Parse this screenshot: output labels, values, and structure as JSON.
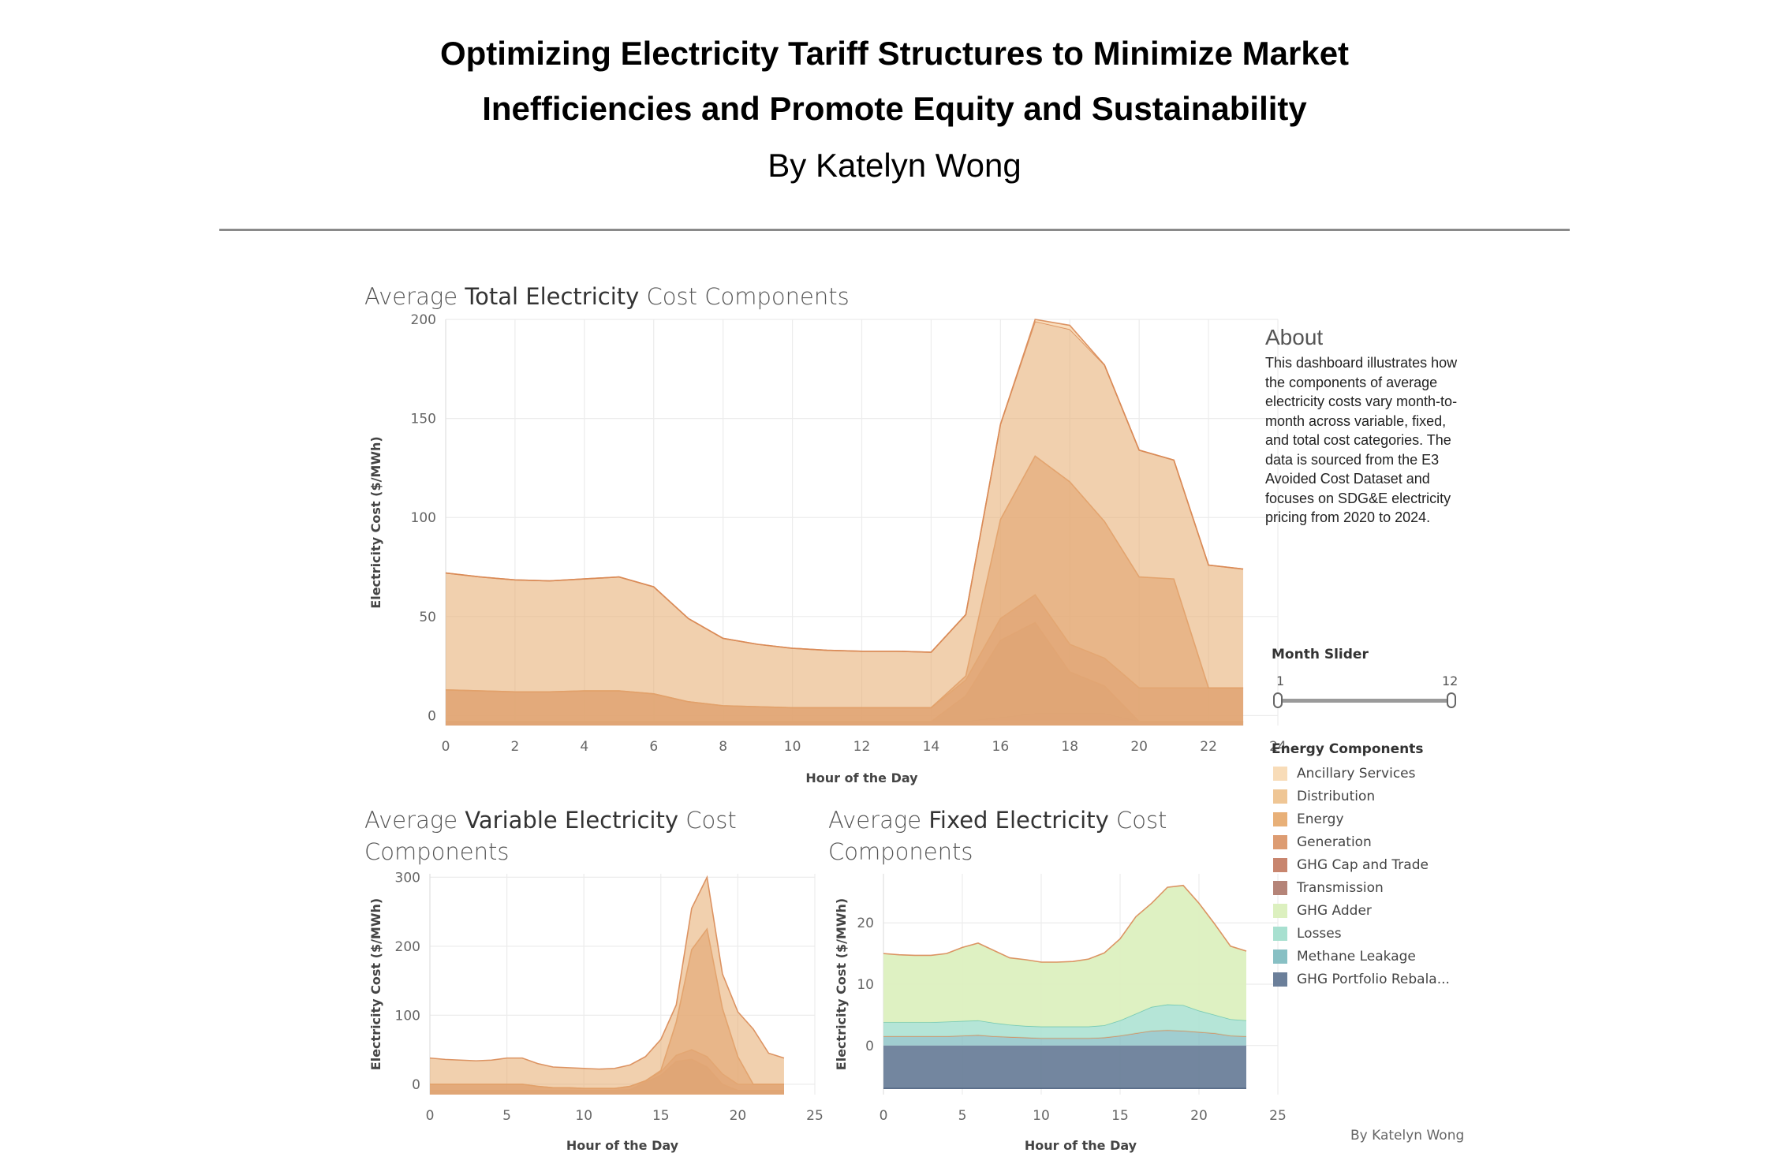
{
  "header": {
    "title_line1": "Optimizing Electricity Tariff Structures to Minimize Market",
    "title_line2": "Inefficiencies and Promote Equity and Sustainability",
    "byline": "By Katelyn Wong"
  },
  "chart_titles": {
    "total": {
      "pre": "Average ",
      "bold": "Total Electricity",
      "post": " Cost Components"
    },
    "variable": {
      "line1_pre": "Average ",
      "line1_bold": "Variable Electricity",
      "line1_post": " Cost",
      "line2": "Components"
    },
    "fixed": {
      "line1_pre": "Average ",
      "line1_bold": "Fixed Electricity",
      "line1_post": " Cost",
      "line2": "Components"
    }
  },
  "about": {
    "title": "About",
    "text": "This dashboard illustrates how the components of average electricity costs vary month-to-month across variable, fixed, and total cost categories. The data is sourced from the E3 Avoided Cost Dataset and focuses on SDG&E electricity pricing from 2020 to 2024."
  },
  "slider": {
    "label": "Month Slider",
    "min": "1",
    "max": "12",
    "selected_range": [
      1,
      12
    ]
  },
  "legend": {
    "title": "Energy Components",
    "items": [
      {
        "name": "Ancillary Services",
        "color": "#f8dcb8"
      },
      {
        "name": "Distribution",
        "color": "#efc695"
      },
      {
        "name": "Energy",
        "color": "#e8b078"
      },
      {
        "name": "Generation",
        "color": "#dd9c72"
      },
      {
        "name": "GHG Cap and Trade",
        "color": "#c8856e"
      },
      {
        "name": "Transmission",
        "color": "#b58478"
      },
      {
        "name": "GHG Adder",
        "color": "#dcf0bf"
      },
      {
        "name": "Losses",
        "color": "#a8e0d0"
      },
      {
        "name": "Methane Leakage",
        "color": "#88c0c4"
      },
      {
        "name": "GHG Portfolio Rebala...",
        "color": "#6b7f9a"
      }
    ]
  },
  "footer": "By Katelyn Wong",
  "chart_data": [
    {
      "type": "area",
      "title": "Average Total Electricity Cost Components",
      "xlabel": "Hour of the Day",
      "ylabel": "Electricity Cost ($/MWh)",
      "xlim": [
        0,
        24
      ],
      "ylim": [
        -5,
        200
      ],
      "xticks": [
        0,
        2,
        4,
        6,
        8,
        10,
        12,
        14,
        16,
        18,
        20,
        22,
        24
      ],
      "yticks": [
        0,
        50,
        100,
        150,
        200
      ],
      "grid": true,
      "x": [
        0,
        1,
        2,
        3,
        4,
        5,
        6,
        7,
        8,
        9,
        10,
        11,
        12,
        13,
        14,
        15,
        16,
        17,
        18,
        19,
        20,
        21,
        22,
        23
      ],
      "layers": [
        {
          "name": "Losses",
          "color": "#a8e0d0",
          "opacity": 0.9,
          "values": [
            -3,
            -3,
            -3,
            -3,
            -3,
            -3,
            -3,
            -3,
            -3,
            -3,
            -3,
            -3,
            -3,
            -3,
            -3,
            -3,
            -1,
            1,
            1,
            1,
            -3,
            -3,
            -3,
            -3
          ],
          "base": -5
        },
        {
          "name": "Transmission",
          "color": "#b58478",
          "opacity": 0.85,
          "values": [
            -3,
            -3,
            -3,
            -3,
            -3,
            -3,
            -3,
            -3,
            -3,
            -3,
            -3,
            -3,
            -3,
            -3,
            -3,
            10,
            38,
            47,
            22,
            15,
            -3,
            -3,
            -3,
            -3
          ],
          "base": -5
        },
        {
          "name": "GHG Cap and Trade",
          "color": "#c8856e",
          "opacity": 0.7,
          "values": [
            13,
            12.5,
            12,
            12,
            12.5,
            12.5,
            11,
            7,
            5,
            4.5,
            4,
            4,
            4,
            4,
            4,
            18,
            49,
            61,
            36,
            29,
            14,
            14,
            14,
            14
          ],
          "base": -5
        },
        {
          "name": "Generation",
          "color": "#dd9c72",
          "opacity": 0.65,
          "values": [
            13,
            12.5,
            12,
            12,
            12.5,
            12.5,
            11,
            7,
            5,
            4.5,
            4,
            4,
            4,
            4,
            4,
            20,
            99,
            131,
            118,
            98,
            70,
            69,
            14,
            14
          ],
          "base": -5
        },
        {
          "name": "Energy",
          "color": "#e8b078",
          "opacity": 0.6,
          "values": [
            72,
            70,
            68.5,
            68,
            69,
            70,
            65,
            49,
            39,
            36,
            34,
            33,
            32.5,
            32.5,
            32,
            51,
            147,
            199,
            195,
            177,
            134,
            129,
            76,
            74
          ],
          "base": -5
        },
        {
          "name": "Ancillary Services",
          "color": "#f8dcb8",
          "opacity": 0.9,
          "values": [
            72,
            70,
            68.5,
            68,
            69,
            70,
            65,
            49,
            39,
            36,
            34,
            33,
            32.5,
            32.5,
            32,
            51,
            147,
            200,
            197,
            177,
            134,
            129,
            76,
            74
          ],
          "base": "Energy"
        }
      ]
    },
    {
      "type": "area",
      "title": "Average Variable Electricity Cost Components",
      "xlabel": "Hour of the Day",
      "ylabel": "Electricity Cost ($/MWh)",
      "xlim": [
        0,
        25
      ],
      "ylim": [
        -15,
        305
      ],
      "xticks": [
        0,
        5,
        10,
        15,
        20,
        25
      ],
      "yticks": [
        0,
        100,
        200,
        300
      ],
      "grid": true,
      "x": [
        0,
        1,
        2,
        3,
        4,
        5,
        6,
        7,
        8,
        9,
        10,
        11,
        12,
        13,
        14,
        15,
        16,
        17,
        18,
        19,
        20,
        21,
        22,
        23
      ],
      "layers": [
        {
          "name": "Transmission",
          "color": "#b58478",
          "opacity": 0.85,
          "values": [
            -9,
            -9,
            -9,
            -9,
            -9,
            -9,
            -9,
            -9,
            -9,
            -9,
            -9,
            -9,
            -9,
            -8,
            3,
            13,
            33,
            36,
            25,
            0,
            -9,
            -9,
            -9,
            -9
          ],
          "base": -15
        },
        {
          "name": "GHG Cap and Trade",
          "color": "#c8856e",
          "opacity": 0.7,
          "values": [
            0,
            0,
            0,
            0,
            0,
            0,
            0,
            -3,
            -5,
            -5,
            -6,
            -6,
            -6,
            -3,
            5,
            18,
            42,
            50,
            40,
            15,
            0,
            0,
            0,
            0
          ],
          "base": -15
        },
        {
          "name": "Generation",
          "color": "#dd9c72",
          "opacity": 0.65,
          "values": [
            0,
            0,
            0,
            0,
            0,
            0,
            0,
            -3,
            -5,
            -5,
            -6,
            -6,
            -6,
            -3,
            5,
            20,
            90,
            195,
            225,
            110,
            40,
            0,
            0,
            0
          ],
          "base": -15
        },
        {
          "name": "Energy",
          "color": "#e8b078",
          "opacity": 0.6,
          "values": [
            38,
            36,
            35,
            34,
            35,
            38,
            38,
            30,
            25,
            24,
            23,
            22,
            23,
            28,
            40,
            65,
            115,
            255,
            300,
            160,
            105,
            80,
            45,
            38
          ],
          "base": -15
        }
      ]
    },
    {
      "type": "area",
      "title": "Average Fixed Electricity Cost Components",
      "xlabel": "Hour of the Day",
      "ylabel": "Electricity Cost ($/MWh)",
      "xlim": [
        0,
        25
      ],
      "ylim": [
        -8,
        28
      ],
      "xticks": [
        0,
        5,
        10,
        15,
        20,
        25
      ],
      "yticks": [
        0,
        10,
        20
      ],
      "grid": true,
      "x": [
        0,
        1,
        2,
        3,
        4,
        5,
        6,
        7,
        8,
        9,
        10,
        11,
        12,
        13,
        14,
        15,
        16,
        17,
        18,
        19,
        20,
        21,
        22,
        23
      ],
      "layers": [
        {
          "name": "GHG Portfolio Rebala...",
          "color": "#6b7f9a",
          "opacity": 0.95,
          "values": [
            -7,
            -7,
            -7,
            -7,
            -7,
            -7,
            -7,
            -7,
            -7,
            -7,
            -7,
            -7,
            -7,
            -7,
            -7,
            -7,
            -7,
            -7,
            -7,
            -7,
            -7,
            -7,
            -7,
            -7
          ],
          "base": 0
        },
        {
          "name": "Methane Leakage",
          "color": "#88c0c4",
          "opacity": 0.8,
          "values": [
            1.5,
            1.5,
            1.5,
            1.5,
            1.5,
            1.6,
            1.7,
            1.5,
            1.4,
            1.3,
            1.2,
            1.2,
            1.2,
            1.2,
            1.3,
            1.6,
            2.0,
            2.4,
            2.5,
            2.4,
            2.2,
            2.0,
            1.6,
            1.5
          ],
          "base": 0
        },
        {
          "name": "Losses",
          "color": "#a8e0d0",
          "opacity": 0.85,
          "values": [
            3.8,
            3.8,
            3.8,
            3.8,
            3.9,
            4.0,
            4.1,
            3.7,
            3.4,
            3.2,
            3.1,
            3.1,
            3.1,
            3.1,
            3.3,
            4.1,
            5.2,
            6.3,
            6.7,
            6.6,
            5.7,
            5.0,
            4.3,
            4.1
          ],
          "base": "Methane Leakage"
        },
        {
          "name": "GHG Adder",
          "color": "#dcf0bf",
          "opacity": 0.95,
          "values": [
            15.0,
            14.8,
            14.7,
            14.7,
            15.0,
            16.0,
            16.7,
            15.5,
            14.3,
            14.0,
            13.6,
            13.6,
            13.7,
            14.1,
            15.1,
            17.4,
            21.0,
            23.2,
            25.8,
            26.1,
            23.2,
            19.8,
            16.2,
            15.4
          ],
          "base": "Losses"
        }
      ]
    }
  ]
}
